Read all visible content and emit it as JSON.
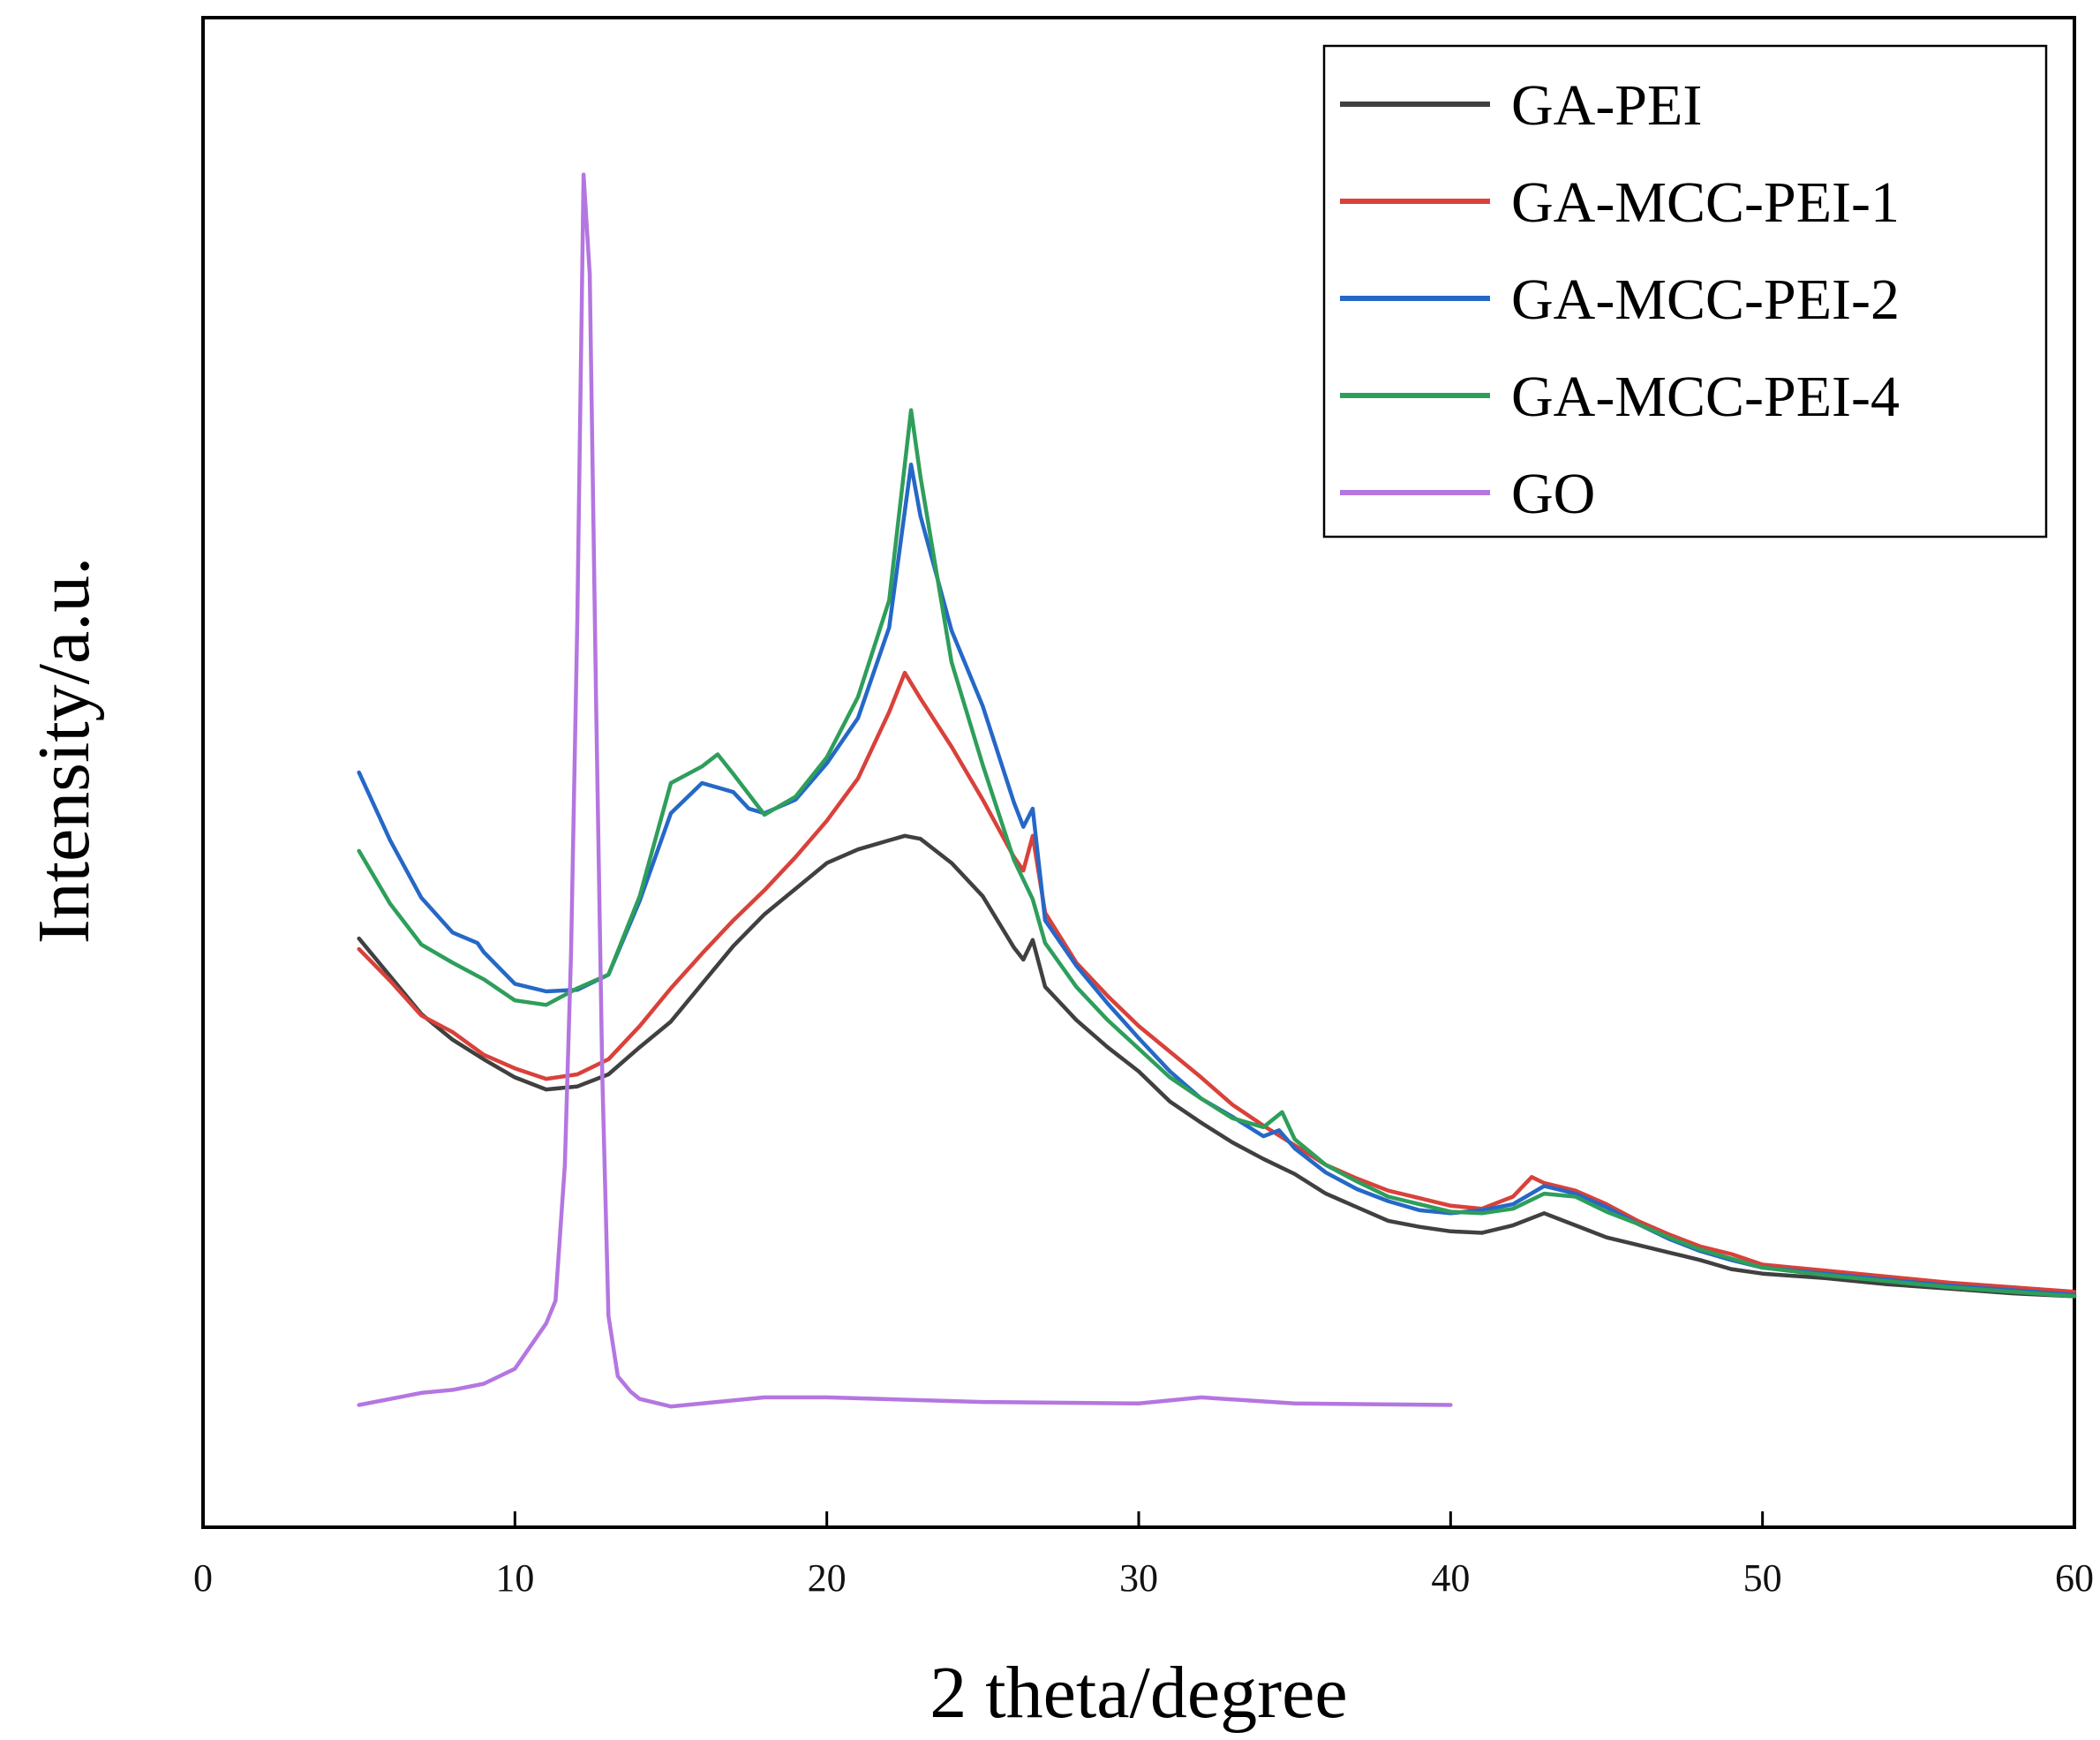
{
  "chart_data": {
    "type": "line",
    "title": "",
    "xlabel": "2 theta/degree",
    "ylabel": "Intensity/a.u.",
    "xlim": [
      0,
      60
    ],
    "ylim": [
      0,
      100
    ],
    "x_ticks": [
      0,
      10,
      20,
      30,
      40,
      50,
      60
    ],
    "y_ticks_shown": false,
    "grid": false,
    "legend_position": "top-right",
    "series": [
      {
        "name": "GA-PEI",
        "color": "#404040",
        "points": [
          [
            5,
            39
          ],
          [
            6,
            36.5
          ],
          [
            7,
            34
          ],
          [
            8,
            32.3
          ],
          [
            9,
            31
          ],
          [
            10,
            29.8
          ],
          [
            11,
            29
          ],
          [
            12,
            29.2
          ],
          [
            13,
            30
          ],
          [
            14,
            31.8
          ],
          [
            15,
            33.5
          ],
          [
            16,
            36
          ],
          [
            17,
            38.5
          ],
          [
            18,
            40.6
          ],
          [
            19,
            42.3
          ],
          [
            20,
            44
          ],
          [
            21,
            44.9
          ],
          [
            22,
            45.5
          ],
          [
            22.5,
            45.8
          ],
          [
            23,
            45.6
          ],
          [
            24,
            44
          ],
          [
            25,
            41.8
          ],
          [
            26,
            38.4
          ],
          [
            26.3,
            37.6
          ],
          [
            26.6,
            38.9
          ],
          [
            27,
            35.8
          ],
          [
            28,
            33.6
          ],
          [
            29,
            31.8
          ],
          [
            30,
            30.2
          ],
          [
            31,
            28.2
          ],
          [
            32,
            26.8
          ],
          [
            33,
            25.5
          ],
          [
            34,
            24.4
          ],
          [
            35,
            23.4
          ],
          [
            36,
            22.1
          ],
          [
            37,
            21.2
          ],
          [
            38,
            20.3
          ],
          [
            39,
            19.9
          ],
          [
            40,
            19.6
          ],
          [
            41,
            19.5
          ],
          [
            42,
            20
          ],
          [
            43,
            20.8
          ],
          [
            44,
            20
          ],
          [
            45,
            19.2
          ],
          [
            46,
            18.7
          ],
          [
            47,
            18.2
          ],
          [
            48,
            17.7
          ],
          [
            49,
            17.1
          ],
          [
            50,
            16.8
          ],
          [
            52,
            16.5
          ],
          [
            54,
            16.1
          ],
          [
            56,
            15.8
          ],
          [
            58,
            15.5
          ],
          [
            60,
            15.3
          ]
        ]
      },
      {
        "name": "GA-MCC-PEI-1",
        "color": "#d9413a",
        "points": [
          [
            5,
            38.3
          ],
          [
            6,
            36.2
          ],
          [
            7,
            33.9
          ],
          [
            8,
            32.8
          ],
          [
            9,
            31.3
          ],
          [
            10,
            30.4
          ],
          [
            11,
            29.7
          ],
          [
            12,
            30
          ],
          [
            13,
            31
          ],
          [
            14,
            33.2
          ],
          [
            15,
            35.7
          ],
          [
            16,
            38
          ],
          [
            17,
            40.2
          ],
          [
            18,
            42.2
          ],
          [
            19,
            44.4
          ],
          [
            20,
            46.8
          ],
          [
            21,
            49.6
          ],
          [
            22,
            54
          ],
          [
            22.5,
            56.6
          ],
          [
            23,
            54.9
          ],
          [
            24,
            51.7
          ],
          [
            25,
            48.2
          ],
          [
            26,
            44.4
          ],
          [
            26.3,
            43.5
          ],
          [
            26.6,
            45.8
          ],
          [
            27,
            40.7
          ],
          [
            28,
            37.4
          ],
          [
            29,
            35.2
          ],
          [
            30,
            33.2
          ],
          [
            31,
            31.5
          ],
          [
            32,
            29.8
          ],
          [
            33,
            28
          ],
          [
            34,
            26.6
          ],
          [
            35,
            25.3
          ],
          [
            36,
            24
          ],
          [
            37,
            23.1
          ],
          [
            38,
            22.3
          ],
          [
            39,
            21.8
          ],
          [
            40,
            21.3
          ],
          [
            41,
            21.1
          ],
          [
            42,
            21.9
          ],
          [
            42.6,
            23.2
          ],
          [
            43,
            22.8
          ],
          [
            44,
            22.3
          ],
          [
            45,
            21.4
          ],
          [
            46,
            20.3
          ],
          [
            47,
            19.4
          ],
          [
            48,
            18.6
          ],
          [
            49,
            18.1
          ],
          [
            50,
            17.4
          ],
          [
            52,
            17
          ],
          [
            54,
            16.6
          ],
          [
            56,
            16.2
          ],
          [
            58,
            15.9
          ],
          [
            60,
            15.6
          ]
        ]
      },
      {
        "name": "GA-MCC-PEI-2",
        "color": "#2568c7",
        "points": [
          [
            5,
            50
          ],
          [
            6,
            45.5
          ],
          [
            7,
            41.7
          ],
          [
            8,
            39.4
          ],
          [
            8.8,
            38.7
          ],
          [
            9,
            38.1
          ],
          [
            10,
            36
          ],
          [
            11,
            35.5
          ],
          [
            12,
            35.6
          ],
          [
            13,
            36.6
          ],
          [
            14,
            41.5
          ],
          [
            15,
            47.3
          ],
          [
            16,
            49.3
          ],
          [
            17,
            48.7
          ],
          [
            17.5,
            47.6
          ],
          [
            18,
            47.3
          ],
          [
            19,
            48.2
          ],
          [
            20,
            50.6
          ],
          [
            21,
            53.6
          ],
          [
            22,
            59.6
          ],
          [
            22.7,
            70.4
          ],
          [
            23,
            67
          ],
          [
            24,
            59.4
          ],
          [
            25,
            54.4
          ],
          [
            26,
            48
          ],
          [
            26.3,
            46.4
          ],
          [
            26.6,
            47.6
          ],
          [
            27,
            40.2
          ],
          [
            28,
            37.2
          ],
          [
            29,
            34.7
          ],
          [
            30,
            32.4
          ],
          [
            31,
            30.2
          ],
          [
            32,
            28.4
          ],
          [
            33,
            27.2
          ],
          [
            34,
            25.9
          ],
          [
            34.5,
            26.3
          ],
          [
            35,
            25.1
          ],
          [
            36,
            23.5
          ],
          [
            37,
            22.4
          ],
          [
            38,
            21.6
          ],
          [
            39,
            21
          ],
          [
            40,
            20.8
          ],
          [
            41,
            21
          ],
          [
            42,
            21.4
          ],
          [
            43,
            22.6
          ],
          [
            44,
            22.1
          ],
          [
            45,
            21.2
          ],
          [
            46,
            20.1
          ],
          [
            47,
            19.1
          ],
          [
            48,
            18.3
          ],
          [
            49,
            17.7
          ],
          [
            50,
            17.2
          ],
          [
            52,
            16.8
          ],
          [
            54,
            16.4
          ],
          [
            56,
            16
          ],
          [
            58,
            15.7
          ],
          [
            60,
            15.4
          ]
        ]
      },
      {
        "name": "GA-MCC-PEI-4",
        "color": "#2e9e5b",
        "points": [
          [
            5,
            44.8
          ],
          [
            6,
            41.3
          ],
          [
            7,
            38.6
          ],
          [
            8,
            37.4
          ],
          [
            9,
            36.3
          ],
          [
            10,
            34.9
          ],
          [
            11,
            34.6
          ],
          [
            12,
            35.7
          ],
          [
            13,
            36.6
          ],
          [
            14,
            41.8
          ],
          [
            15,
            49.3
          ],
          [
            16,
            50.4
          ],
          [
            16.5,
            51.2
          ],
          [
            17,
            49.9
          ],
          [
            18,
            47.2
          ],
          [
            19,
            48.4
          ],
          [
            20,
            51
          ],
          [
            21,
            55
          ],
          [
            22,
            61.4
          ],
          [
            22.7,
            74
          ],
          [
            23,
            69.6
          ],
          [
            24,
            57.3
          ],
          [
            25,
            50.5
          ],
          [
            26,
            44.2
          ],
          [
            26.6,
            41.6
          ],
          [
            27,
            38.7
          ],
          [
            28,
            35.8
          ],
          [
            29,
            33.6
          ],
          [
            30,
            31.7
          ],
          [
            31,
            29.8
          ],
          [
            32,
            28.4
          ],
          [
            33,
            27.1
          ],
          [
            34,
            26.5
          ],
          [
            34.6,
            27.5
          ],
          [
            35,
            25.7
          ],
          [
            36,
            24
          ],
          [
            37,
            22.9
          ],
          [
            38,
            21.9
          ],
          [
            39,
            21.4
          ],
          [
            40,
            20.9
          ],
          [
            41,
            20.8
          ],
          [
            42,
            21.1
          ],
          [
            43,
            22.1
          ],
          [
            44,
            21.9
          ],
          [
            45,
            20.9
          ],
          [
            46,
            20.1
          ],
          [
            47,
            19.2
          ],
          [
            48,
            18.4
          ],
          [
            49,
            17.8
          ],
          [
            50,
            17.2
          ],
          [
            52,
            16.7
          ],
          [
            54,
            16.3
          ],
          [
            56,
            15.9
          ],
          [
            58,
            15.6
          ],
          [
            60,
            15.3
          ]
        ]
      },
      {
        "name": "GO",
        "color": "#b476e0",
        "points": [
          [
            5,
            8.1
          ],
          [
            6,
            8.5
          ],
          [
            7,
            8.9
          ],
          [
            8,
            9.1
          ],
          [
            9,
            9.5
          ],
          [
            10,
            10.5
          ],
          [
            11,
            13.5
          ],
          [
            11.3,
            15
          ],
          [
            11.6,
            24
          ],
          [
            11.8,
            38
          ],
          [
            12,
            60
          ],
          [
            12.2,
            89.6
          ],
          [
            12.4,
            83
          ],
          [
            12.6,
            55
          ],
          [
            12.8,
            30
          ],
          [
            13,
            14
          ],
          [
            13.3,
            10
          ],
          [
            13.7,
            9
          ],
          [
            14,
            8.5
          ],
          [
            15,
            8
          ],
          [
            16,
            8.2
          ],
          [
            18,
            8.6
          ],
          [
            20,
            8.6
          ],
          [
            25,
            8.3
          ],
          [
            30,
            8.2
          ],
          [
            32,
            8.6
          ],
          [
            35,
            8.2
          ],
          [
            40,
            8.1
          ]
        ]
      }
    ]
  }
}
